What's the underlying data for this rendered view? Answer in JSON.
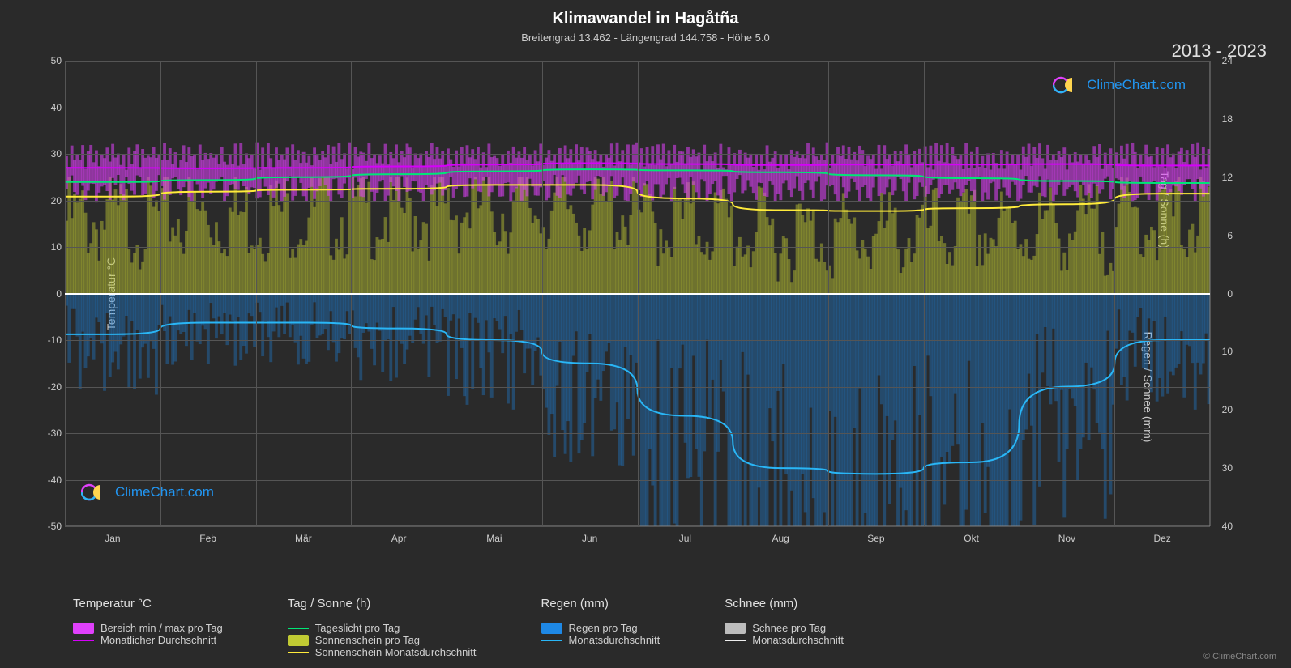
{
  "title": "Klimawandel in Hagåtña",
  "subtitle": "Breitengrad 13.462 - Längengrad 144.758 - Höhe 5.0",
  "year_range": "2013 - 2023",
  "copyright": "© ClimeChart.com",
  "watermark_text": "ClimeChart.com",
  "watermark_color": "#2196f3",
  "chart": {
    "y_left": {
      "label": "Temperatur °C",
      "min": -50,
      "max": 50,
      "ticks": [
        -50,
        -40,
        -30,
        -20,
        -10,
        0,
        10,
        20,
        30,
        40,
        50
      ]
    },
    "y_right_top": {
      "label": "Tag / Sonne (h)",
      "ticks": [
        24,
        18,
        12,
        6,
        0
      ]
    },
    "y_right_bottom": {
      "label": "Regen / Schnee (mm)",
      "ticks": [
        0,
        10,
        20,
        30,
        40
      ]
    },
    "months": [
      "Jan",
      "Feb",
      "Mär",
      "Apr",
      "Mai",
      "Jun",
      "Jul",
      "Aug",
      "Sep",
      "Okt",
      "Nov",
      "Dez"
    ],
    "grid_color": "#555555",
    "background": "#2a2a2a",
    "series": {
      "temp_range": {
        "color": "#e040fb",
        "min": 24,
        "max": 31,
        "band_opacity": 0.7
      },
      "temp_monthly": {
        "color": "#d500f9",
        "values": [
          27.0,
          26.9,
          27.0,
          27.3,
          27.7,
          28.0,
          27.8,
          27.6,
          27.7,
          27.7,
          27.8,
          27.5
        ]
      },
      "daylight": {
        "color": "#00e676",
        "values": [
          11.5,
          11.7,
          12.0,
          12.3,
          12.6,
          12.8,
          12.7,
          12.5,
          12.2,
          11.9,
          11.6,
          11.4
        ]
      },
      "sunshine_fill": {
        "color": "#c0ca33",
        "max": 11,
        "opacity": 0.45
      },
      "sunshine_monthly": {
        "color": "#ffeb3b",
        "values": [
          10.0,
          10.5,
          10.7,
          10.8,
          11.2,
          11.2,
          9.8,
          8.6,
          8.5,
          8.8,
          9.2,
          10.3
        ]
      },
      "rain_fill": {
        "color": "#1e88e5",
        "max": 38,
        "opacity": 0.35
      },
      "rain_monthly": {
        "color": "#29b6f6",
        "values": [
          7,
          5,
          5,
          6,
          8,
          12,
          21,
          30,
          31,
          29,
          16,
          8
        ]
      },
      "snow_monthly": {
        "color": "#eeeeee",
        "values": [
          0,
          0,
          0,
          0,
          0,
          0,
          0,
          0,
          0,
          0,
          0,
          0
        ]
      }
    }
  },
  "legend": {
    "temperature": {
      "header": "Temperatur °C",
      "items": [
        {
          "type": "swatch",
          "color": "#e040fb",
          "label": "Bereich min / max pro Tag"
        },
        {
          "type": "line",
          "color": "#d500f9",
          "label": "Monatlicher Durchschnitt"
        }
      ]
    },
    "sun": {
      "header": "Tag / Sonne (h)",
      "items": [
        {
          "type": "line",
          "color": "#00e676",
          "label": "Tageslicht pro Tag"
        },
        {
          "type": "swatch",
          "color": "#c0ca33",
          "label": "Sonnenschein pro Tag"
        },
        {
          "type": "line",
          "color": "#ffeb3b",
          "label": "Sonnenschein Monatsdurchschnitt"
        }
      ]
    },
    "rain": {
      "header": "Regen (mm)",
      "items": [
        {
          "type": "swatch",
          "color": "#1e88e5",
          "label": "Regen pro Tag"
        },
        {
          "type": "line",
          "color": "#29b6f6",
          "label": "Monatsdurchschnitt"
        }
      ]
    },
    "snow": {
      "header": "Schnee (mm)",
      "items": [
        {
          "type": "swatch",
          "color": "#bdbdbd",
          "label": "Schnee pro Tag"
        },
        {
          "type": "line",
          "color": "#eeeeee",
          "label": "Monatsdurchschnitt"
        }
      ]
    }
  }
}
